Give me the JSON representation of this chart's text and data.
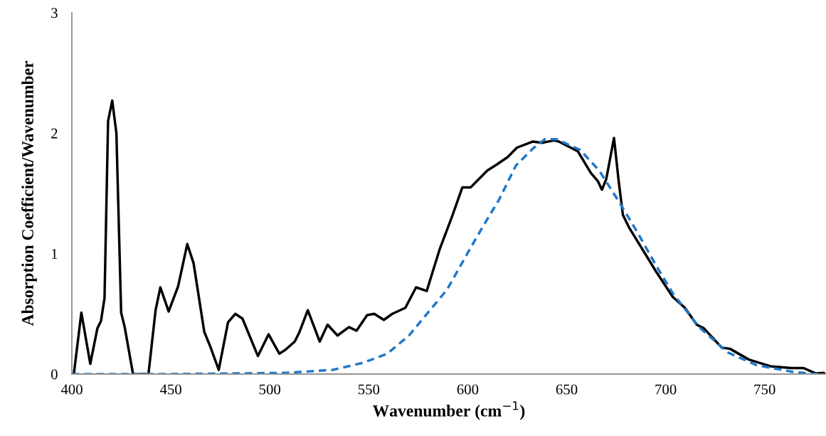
{
  "chart_data": {
    "type": "line",
    "xlabel": "Wavenumber (cm$^{−1}$)",
    "ylabel": "Absorption Coefficient/Wavenumber",
    "xlim": [
      400,
      781
    ],
    "ylim": [
      0,
      3
    ],
    "xticks": [
      400,
      450,
      500,
      550,
      600,
      650,
      700,
      750
    ],
    "yticks": [
      0,
      1,
      2,
      3
    ],
    "grid": false,
    "legend": false,
    "marker": "none",
    "series": [
      {
        "color": "#000000",
        "line_style": "solid",
        "x": [
          401,
          404.8,
          409.3,
          412.9,
          414.7,
          416.5,
          418.3,
          420.4,
          422.5,
          424.9,
          426.7,
          430.9,
          438.7,
          442.3,
          444.7,
          448.9,
          453.7,
          458.3,
          461.5,
          466.9,
          469.9,
          474.2,
          478.9,
          482.6,
          486.2,
          494,
          499.4,
          504.8,
          507.8,
          512.6,
          515,
          519.2,
          525.2,
          529.2,
          534.2,
          540,
          543.8,
          549.2,
          552.8,
          557.6,
          561.9,
          568.5,
          573.9,
          579.3,
          585.9,
          591.9,
          597.3,
          601.5,
          609.9,
          614.7,
          620.1,
          624.9,
          632.8,
          637.5,
          643.6,
          646,
          652,
          655.6,
          662.2,
          665.8,
          667.8,
          670,
          673.9,
          676.2,
          678.4,
          681.4,
          695.2,
          703.6,
          709.7,
          715.7,
          719.3,
          728.3,
          732.5,
          742.1,
          752.9,
          763.7,
          769.7,
          775.7,
          780
        ],
        "values": [
          0,
          0.51,
          0.085,
          0.38,
          0.44,
          0.63,
          2.1,
          2.27,
          2.0,
          0.51,
          0.39,
          0,
          0,
          0.53,
          0.72,
          0.52,
          0.73,
          1.08,
          0.92,
          0.35,
          0.23,
          0.035,
          0.43,
          0.5,
          0.46,
          0.15,
          0.33,
          0.17,
          0.2,
          0.27,
          0.35,
          0.53,
          0.27,
          0.41,
          0.32,
          0.39,
          0.36,
          0.49,
          0.5,
          0.45,
          0.5,
          0.55,
          0.72,
          0.69,
          1.04,
          1.3,
          1.55,
          1.55,
          1.69,
          1.74,
          1.8,
          1.88,
          1.93,
          1.92,
          1.94,
          1.93,
          1.88,
          1.85,
          1.67,
          1.6,
          1.53,
          1.62,
          1.96,
          1.61,
          1.32,
          1.22,
          0.85,
          0.64,
          0.55,
          0.41,
          0.38,
          0.22,
          0.21,
          0.12,
          0.065,
          0.05,
          0.05,
          0.006,
          0.01
        ]
      },
      {
        "color": "#1f78c8",
        "line_style": "dashed",
        "x": [
          400,
          450,
          480,
          507.8,
          531.8,
          547.4,
          559.4,
          570.3,
          579.9,
          589.5,
          599.1,
          607.5,
          615.9,
          624.3,
          632.8,
          639,
          644.8,
          656.8,
          666.4,
          677.2,
          685.6,
          695.2,
          703.6,
          716.9,
          731.3,
          745.7,
          764.9,
          777
        ],
        "values": [
          0,
          0,
          0.005,
          0.01,
          0.035,
          0.095,
          0.17,
          0.32,
          0.51,
          0.7,
          0.98,
          1.22,
          1.45,
          1.73,
          1.87,
          1.95,
          1.95,
          1.86,
          1.69,
          1.41,
          1.18,
          0.9,
          0.67,
          0.39,
          0.18,
          0.075,
          0.016,
          0
        ]
      }
    ]
  }
}
